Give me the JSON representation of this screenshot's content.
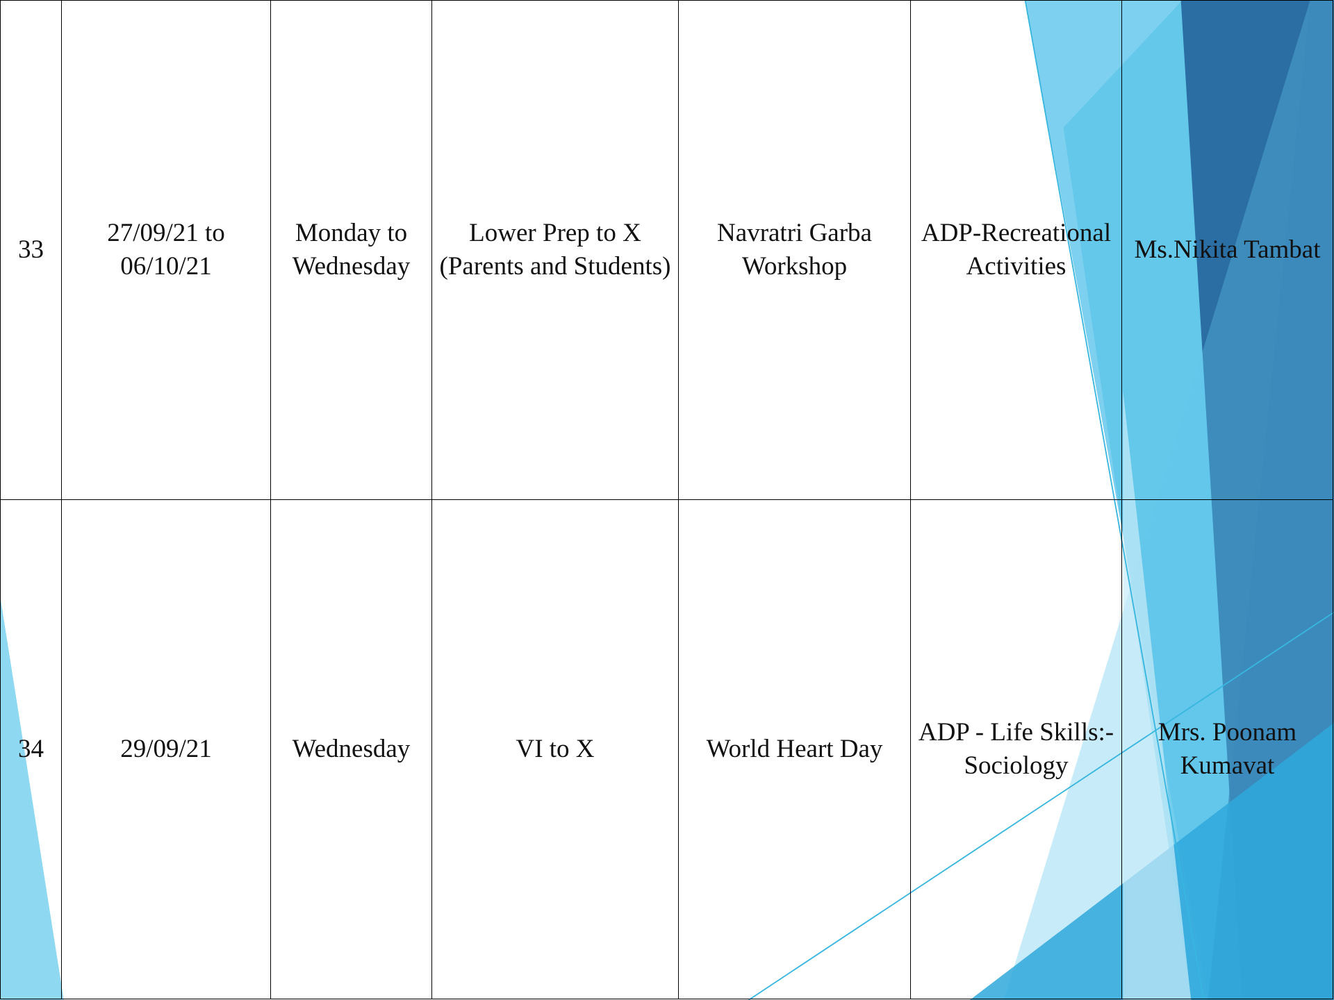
{
  "table": {
    "rows": [
      [
        "33",
        "27/09/21 to 06/10/21",
        "Monday to Wednesday",
        "Lower Prep to X (Parents and Students)",
        "Navratri Garba Workshop",
        "ADP-Recreational Activities",
        "Ms.Nikita Tambat"
      ],
      [
        "34",
        "29/09/21",
        "Wednesday",
        "VI to X",
        "World Heart Day",
        "ADP - Life Skills:- Sociology",
        "Mrs. Poonam Kumavat"
      ]
    ]
  }
}
